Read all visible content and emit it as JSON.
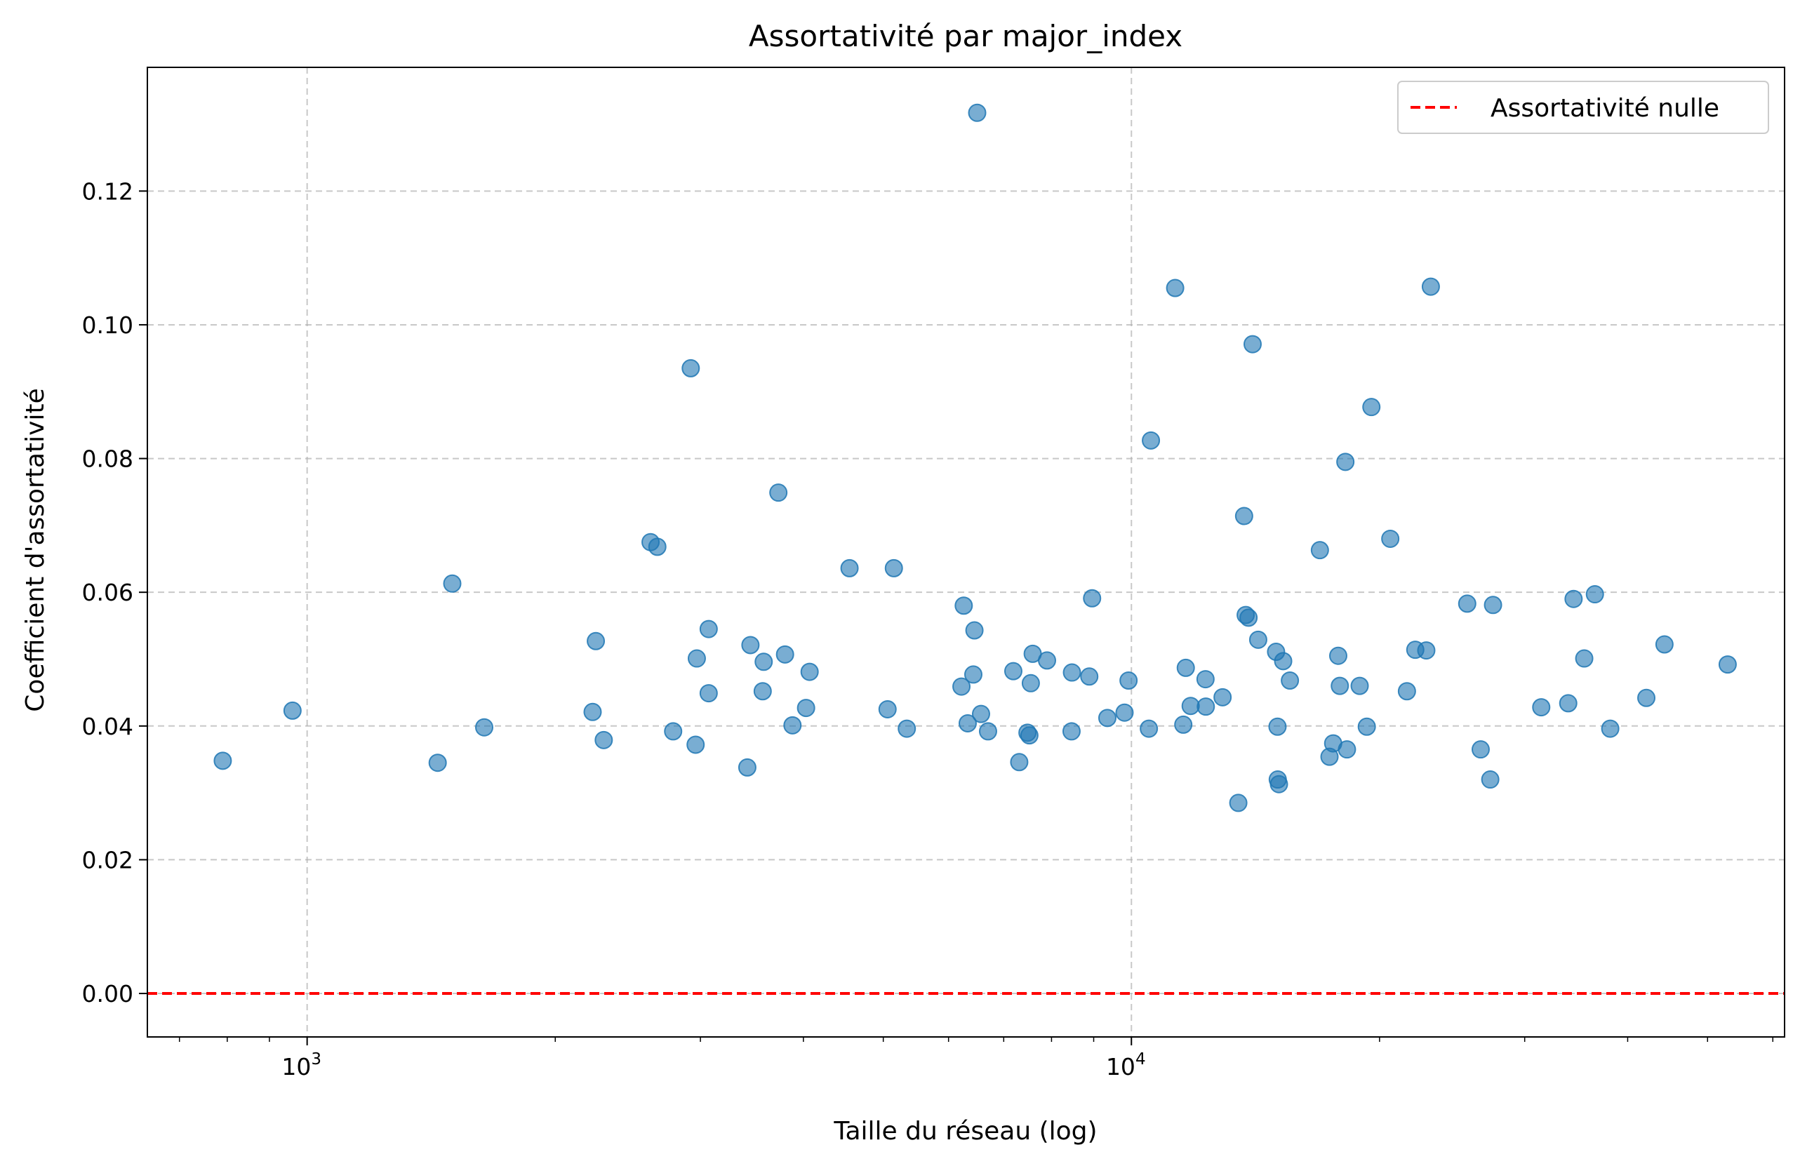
{
  "chart_data": {
    "type": "scatter",
    "title": "Assortativité par major_index",
    "xlabel": "Taille du réseau (log)",
    "ylabel": "Coefficient d'assortativité",
    "x_scale": "log",
    "xlim": [
      640,
      62000
    ],
    "ylim": [
      -0.0065,
      0.1385
    ],
    "grid": true,
    "legend_position": "top-right",
    "x_major_ticks": [
      {
        "value": 1000,
        "base": "10",
        "exp": "3"
      },
      {
        "value": 10000,
        "base": "10",
        "exp": "4"
      }
    ],
    "y_ticks": [
      {
        "value": 0.0,
        "label": "0.00"
      },
      {
        "value": 0.02,
        "label": "0.02"
      },
      {
        "value": 0.04,
        "label": "0.04"
      },
      {
        "value": 0.06,
        "label": "0.06"
      },
      {
        "value": 0.08,
        "label": "0.08"
      },
      {
        "value": 0.1,
        "label": "0.10"
      },
      {
        "value": 0.12,
        "label": "0.12"
      }
    ],
    "reference_line": {
      "y": 0.0,
      "label": "Assortativité nulle",
      "color": "#ff0000",
      "style": "dashed"
    },
    "series": [
      {
        "color": "#1f77b4",
        "opacity": 0.6,
        "points": [
          [
            790,
            0.0348
          ],
          [
            960,
            0.0423
          ],
          [
            1440,
            0.0345
          ],
          [
            1500,
            0.0613
          ],
          [
            1640,
            0.0398
          ],
          [
            2220,
            0.0421
          ],
          [
            2240,
            0.0527
          ],
          [
            2290,
            0.0379
          ],
          [
            2610,
            0.0675
          ],
          [
            2660,
            0.0668
          ],
          [
            2780,
            0.0392
          ],
          [
            2920,
            0.0935
          ],
          [
            2960,
            0.0372
          ],
          [
            2970,
            0.0501
          ],
          [
            3070,
            0.0545
          ],
          [
            3070,
            0.0449
          ],
          [
            3420,
            0.0338
          ],
          [
            3450,
            0.0521
          ],
          [
            3570,
            0.0452
          ],
          [
            3580,
            0.0496
          ],
          [
            3730,
            0.0749
          ],
          [
            3800,
            0.0507
          ],
          [
            3880,
            0.0401
          ],
          [
            4030,
            0.0427
          ],
          [
            4070,
            0.0481
          ],
          [
            4550,
            0.0636
          ],
          [
            5060,
            0.0425
          ],
          [
            5150,
            0.0636
          ],
          [
            5340,
            0.0396
          ],
          [
            6220,
            0.0459
          ],
          [
            6260,
            0.058
          ],
          [
            6330,
            0.0404
          ],
          [
            6430,
            0.0477
          ],
          [
            6450,
            0.0543
          ],
          [
            6500,
            0.1317
          ],
          [
            6570,
            0.0418
          ],
          [
            6700,
            0.0392
          ],
          [
            7190,
            0.0482
          ],
          [
            7310,
            0.0346
          ],
          [
            7480,
            0.039
          ],
          [
            7520,
            0.0386
          ],
          [
            7550,
            0.0464
          ],
          [
            7590,
            0.0508
          ],
          [
            7900,
            0.0498
          ],
          [
            8460,
            0.0392
          ],
          [
            8470,
            0.048
          ],
          [
            8890,
            0.0474
          ],
          [
            8960,
            0.0591
          ],
          [
            9350,
            0.0412
          ],
          [
            9810,
            0.042
          ],
          [
            9920,
            0.0468
          ],
          [
            10500,
            0.0396
          ],
          [
            10560,
            0.0827
          ],
          [
            11300,
            0.1055
          ],
          [
            11560,
            0.0402
          ],
          [
            11640,
            0.0487
          ],
          [
            11800,
            0.043
          ],
          [
            12300,
            0.047
          ],
          [
            12310,
            0.0429
          ],
          [
            12900,
            0.0443
          ],
          [
            13480,
            0.0285
          ],
          [
            13700,
            0.0714
          ],
          [
            13760,
            0.0566
          ],
          [
            13870,
            0.0562
          ],
          [
            14030,
            0.0971
          ],
          [
            14250,
            0.0529
          ],
          [
            14980,
            0.0511
          ],
          [
            15040,
            0.0399
          ],
          [
            15050,
            0.032
          ],
          [
            15100,
            0.0313
          ],
          [
            15280,
            0.0497
          ],
          [
            15570,
            0.0468
          ],
          [
            16930,
            0.0663
          ],
          [
            17390,
            0.0354
          ],
          [
            17570,
            0.0374
          ],
          [
            17820,
            0.0505
          ],
          [
            17900,
            0.046
          ],
          [
            18180,
            0.0795
          ],
          [
            18260,
            0.0365
          ],
          [
            18920,
            0.046
          ],
          [
            19300,
            0.0399
          ],
          [
            19550,
            0.0877
          ],
          [
            20610,
            0.068
          ],
          [
            21590,
            0.0452
          ],
          [
            22100,
            0.0514
          ],
          [
            22790,
            0.0513
          ],
          [
            23080,
            0.1057
          ],
          [
            25550,
            0.0583
          ],
          [
            26530,
            0.0365
          ],
          [
            27250,
            0.032
          ],
          [
            27460,
            0.0581
          ],
          [
            31420,
            0.0428
          ],
          [
            33880,
            0.0434
          ],
          [
            34390,
            0.059
          ],
          [
            35430,
            0.0501
          ],
          [
            36500,
            0.0597
          ],
          [
            38100,
            0.0396
          ],
          [
            42140,
            0.0442
          ],
          [
            44330,
            0.0522
          ],
          [
            52890,
            0.0492
          ]
        ]
      }
    ]
  }
}
